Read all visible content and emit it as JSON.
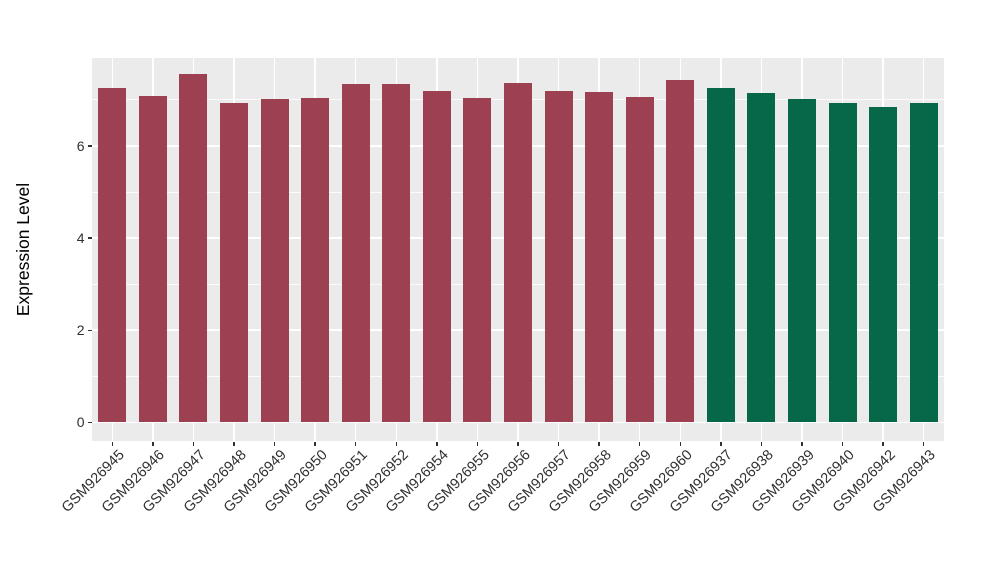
{
  "chart_data": {
    "type": "bar",
    "title": "",
    "xlabel": "",
    "ylabel": "Expression Level",
    "ylim": [
      -0.41,
      7.91
    ],
    "yticks": [
      0,
      2,
      4,
      6
    ],
    "yminor_ticks": [
      1,
      3,
      5,
      7
    ],
    "grid": true,
    "legend": "none",
    "panel_bg_color": "#EBEBEB",
    "grid_color": "#FFFFFF",
    "group_colors": {
      "group1": "#9D4152",
      "group2": "#076849"
    },
    "categories": [
      "GSM926945",
      "GSM926946",
      "GSM926947",
      "GSM926948",
      "GSM926949",
      "GSM926950",
      "GSM926951",
      "GSM926952",
      "GSM926954",
      "GSM926955",
      "GSM926956",
      "GSM926957",
      "GSM926958",
      "GSM926959",
      "GSM926960",
      "GSM926937",
      "GSM926938",
      "GSM926939",
      "GSM926940",
      "GSM926942",
      "GSM926943"
    ],
    "values": [
      7.25,
      7.09,
      7.57,
      6.93,
      7.02,
      7.04,
      7.35,
      7.34,
      7.2,
      7.03,
      7.37,
      7.19,
      7.18,
      7.06,
      7.43,
      7.26,
      7.15,
      7.01,
      6.94,
      6.85,
      6.93
    ],
    "bar_groups": [
      "group1",
      "group1",
      "group1",
      "group1",
      "group1",
      "group1",
      "group1",
      "group1",
      "group1",
      "group1",
      "group1",
      "group1",
      "group1",
      "group1",
      "group1",
      "group2",
      "group2",
      "group2",
      "group2",
      "group2",
      "group2"
    ]
  }
}
